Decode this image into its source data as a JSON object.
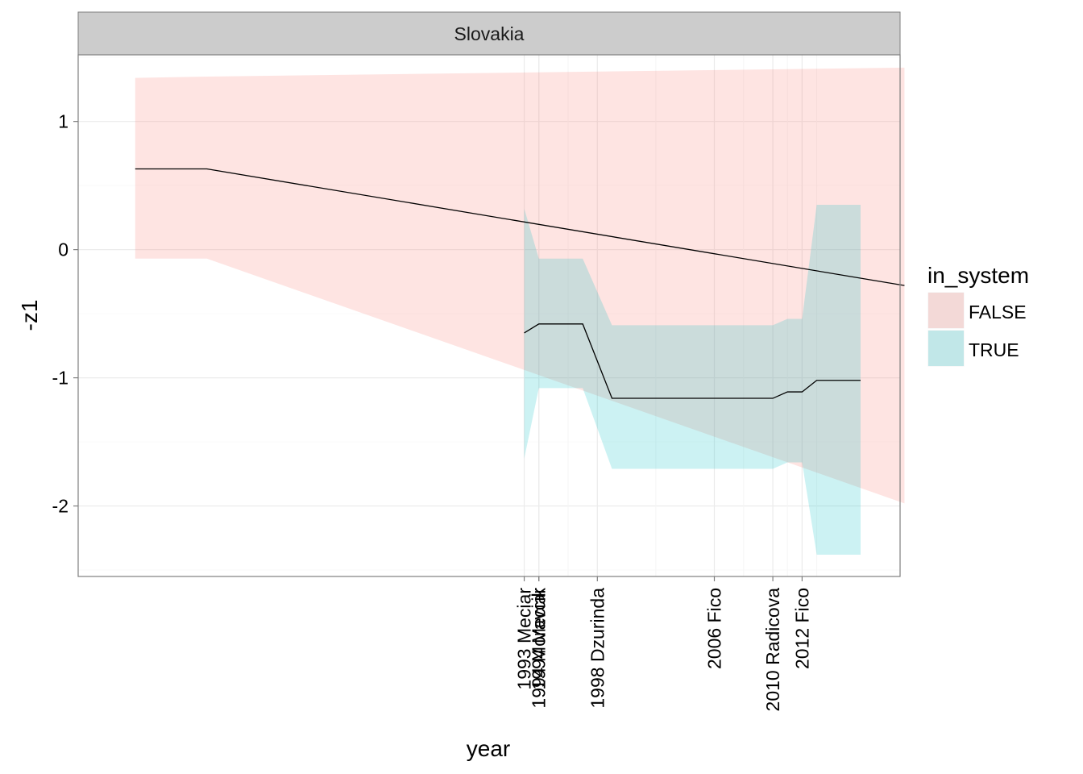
{
  "chart_data": {
    "type": "area",
    "facet_label": "Slovakia",
    "xlabel": "year",
    "ylabel": "-z1",
    "xlim": [
      1962.5,
      2018.7
    ],
    "ylim": [
      -2.55,
      1.52
    ],
    "y_ticks": [
      1,
      0,
      -1,
      -2
    ],
    "y_tick_labels": [
      "1",
      "0",
      "-1",
      "-2"
    ],
    "x_ticks": [
      {
        "year": 1993,
        "label": "1993 Meciar"
      },
      {
        "year": 1994,
        "label": "1994 Moravcik"
      },
      {
        "year": 1994,
        "label": "1994 Meciar"
      },
      {
        "year": 1998,
        "label": "1998 Dzurinda"
      },
      {
        "year": 2006,
        "label": "2006 Fico"
      },
      {
        "year": 2010,
        "label": "2010 Radicova"
      },
      {
        "year": 2012,
        "label": "2012 Fico"
      }
    ],
    "x_minor_gridlines": [
      1996,
      2002,
      2008,
      2011,
      2013
    ],
    "legend": {
      "title": "in_system",
      "position": "right",
      "entries": [
        {
          "label": "FALSE",
          "fill": "#F8766D"
        },
        {
          "label": "TRUE",
          "fill": "#00BFC4"
        }
      ]
    },
    "grid": true,
    "series": [
      {
        "group": "FALSE",
        "fill": "#F8766D",
        "x": [
          1966.4,
          1971.3,
          2019.0
        ],
        "y": [
          0.63,
          0.63,
          -0.28
        ],
        "upper": [
          1.34,
          1.35,
          1.42
        ],
        "lower": [
          -0.07,
          -0.07,
          -1.98
        ]
      },
      {
        "group": "TRUE",
        "fill": "#00BFC4",
        "x": [
          1993.0,
          1994.0,
          1997.0,
          1999.0,
          2010.0,
          2011.0,
          2012.0,
          2013.0,
          2016.0
        ],
        "y": [
          -0.65,
          -0.58,
          -0.58,
          -1.16,
          -1.16,
          -1.11,
          -1.11,
          -1.02,
          -1.02
        ],
        "upper": [
          0.32,
          -0.07,
          -0.07,
          -0.59,
          -0.59,
          -0.54,
          -0.54,
          0.35,
          0.35
        ],
        "lower": [
          -1.63,
          -1.08,
          -1.08,
          -1.71,
          -1.71,
          -1.66,
          -1.66,
          -2.38,
          -2.38
        ]
      }
    ]
  }
}
